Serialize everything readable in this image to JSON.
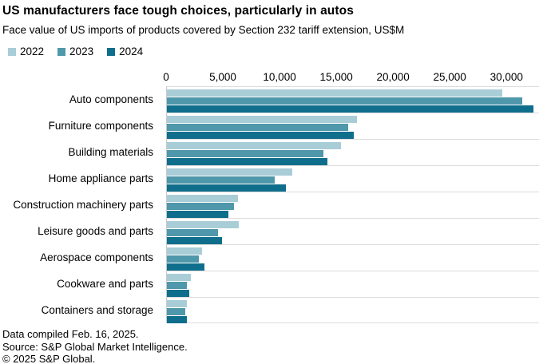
{
  "header": {
    "title": "US manufacturers face tough choices, particularly in autos",
    "subtitle": "Face value of US imports of products covered by Section 232 tariff extension, US$M"
  },
  "chart_data": {
    "type": "bar",
    "orientation": "horizontal",
    "title": "US manufacturers face tough choices, particularly in autos",
    "subtitle": "Face value of US imports of products covered by Section 232 tariff extension, US$M",
    "legend_position": "top-left",
    "grid": "row-separator-lines",
    "categories": [
      "Auto components",
      "Furniture components",
      "Building materials",
      "Home appliance parts",
      "Construction machinery parts",
      "Leisure goods and parts",
      "Aerospace components",
      "Cookware and parts",
      "Containers and storage"
    ],
    "series": [
      {
        "name": "2022",
        "color": "#a9cdd7",
        "values": [
          29600,
          16800,
          15400,
          11100,
          6300,
          6350,
          3100,
          2100,
          1750
        ]
      },
      {
        "name": "2023",
        "color": "#4f97aa",
        "values": [
          31400,
          16000,
          13800,
          9500,
          5900,
          4500,
          2850,
          1750,
          1650
        ]
      },
      {
        "name": "2024",
        "color": "#0f6e8c",
        "values": [
          32400,
          16500,
          14200,
          10500,
          5400,
          4900,
          3300,
          2000,
          1750
        ]
      }
    ],
    "x_axis": {
      "min": 0,
      "max": 32870,
      "ticks": [
        0,
        5000,
        10000,
        15000,
        20000,
        25000,
        30000
      ],
      "tick_labels": [
        "0",
        "5,000",
        "10,000",
        "15,000",
        "20,000",
        "25,000",
        "30,000"
      ]
    }
  },
  "footer": {
    "line1": "Data compiled Feb. 16, 2025.",
    "line2": "Source: S&P Global Market Intelligence.",
    "line3": "© 2025 S&P Global."
  }
}
